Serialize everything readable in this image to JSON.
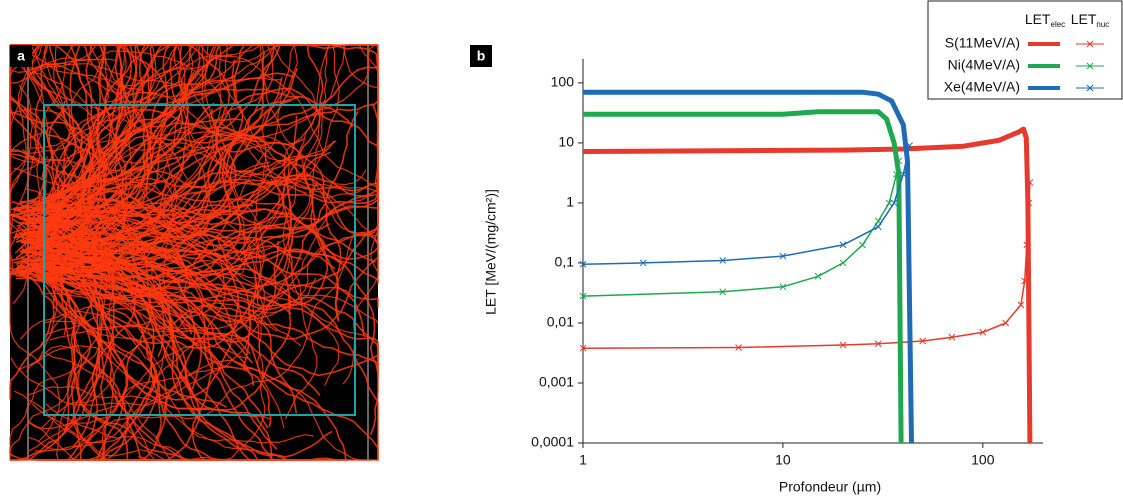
{
  "panel_a": {
    "label": "a"
  },
  "chart_data": {
    "type": "line",
    "panel_label": "b",
    "x_label": "Profondeur (µm)",
    "y_label": "LET [MeV/(mg/cm²)]",
    "xscale": "log",
    "yscale": "log",
    "xlim": [
      1,
      200
    ],
    "xticks": [
      1,
      10,
      100
    ],
    "ylim": [
      0.0001,
      250
    ],
    "yticks": [
      100,
      10,
      1,
      {
        "value": 0.1,
        "label": "0,1"
      },
      {
        "value": 0.01,
        "label": "0,01"
      },
      {
        "value": 0.001,
        "label": "0,001"
      },
      {
        "value": 0.0001,
        "label": "0,0001"
      }
    ],
    "legend_position": "upper right",
    "legend_columns": [
      {
        "text": "LET",
        "sub": "elec"
      },
      {
        "text": "LET",
        "sub": "nuc"
      }
    ],
    "series": [
      {
        "name": "S(11MeV/A)",
        "color": "#e63a2e",
        "elec": {
          "x": [
            1,
            5,
            10,
            20,
            40,
            80,
            120,
            150,
            160,
            165,
            168,
            170,
            172
          ],
          "values": [
            7.2,
            7.4,
            7.5,
            7.6,
            7.9,
            8.8,
            11,
            15,
            17,
            12,
            1,
            0.01,
            0.0001
          ]
        },
        "nuc": {
          "x": [
            1,
            6,
            20,
            30,
            50,
            70,
            100,
            130,
            155,
            162,
            166,
            170,
            172
          ],
          "values": [
            0.0038,
            0.0039,
            0.0043,
            0.0045,
            0.005,
            0.0058,
            0.007,
            0.01,
            0.02,
            0.05,
            0.2,
            1,
            2.2
          ]
        }
      },
      {
        "name": "Ni(4MeV/A)",
        "color": "#1fa84f",
        "elec": {
          "x": [
            1,
            10,
            15,
            30,
            33,
            36,
            38,
            39
          ],
          "values": [
            30,
            30,
            33,
            33,
            25,
            10,
            3,
            0.0001
          ]
        },
        "nuc": {
          "x": [
            1,
            5,
            10,
            15,
            20,
            25,
            30,
            34,
            37,
            38
          ],
          "values": [
            0.028,
            0.033,
            0.04,
            0.06,
            0.1,
            0.2,
            0.5,
            1,
            3,
            5
          ]
        }
      },
      {
        "name": "Xe(4MeV/A)",
        "color": "#1f6bb5",
        "elec": {
          "x": [
            1,
            25,
            30,
            35,
            40,
            42,
            44
          ],
          "values": [
            70,
            70,
            65,
            50,
            20,
            5,
            0.0001
          ]
        },
        "nuc": {
          "x": [
            1,
            2,
            5,
            10,
            20,
            30,
            36,
            40,
            43
          ],
          "values": [
            0.095,
            0.1,
            0.11,
            0.13,
            0.2,
            0.4,
            1,
            3,
            9
          ]
        }
      }
    ]
  }
}
